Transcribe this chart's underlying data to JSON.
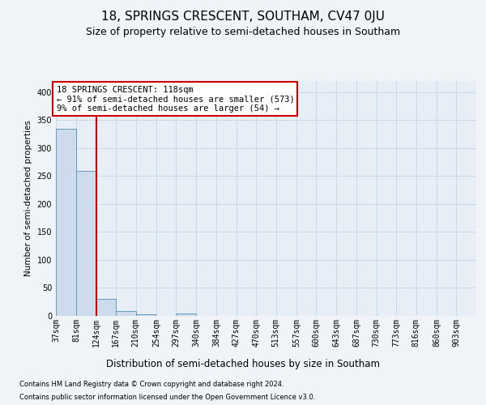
{
  "title": "18, SPRINGS CRESCENT, SOUTHAM, CV47 0JU",
  "subtitle": "Size of property relative to semi-detached houses in Southam",
  "xlabel": "Distribution of semi-detached houses by size in Southam",
  "ylabel": "Number of semi-detached properties",
  "footer1": "Contains HM Land Registry data © Crown copyright and database right 2024.",
  "footer2": "Contains public sector information licensed under the Open Government Licence v3.0.",
  "annotation_title": "18 SPRINGS CRESCENT: 118sqm",
  "annotation_line1": "← 91% of semi-detached houses are smaller (573)",
  "annotation_line2": "9% of semi-detached houses are larger (54) →",
  "property_size_line": 124,
  "bin_labels": [
    "37sqm",
    "81sqm",
    "124sqm",
    "167sqm",
    "210sqm",
    "254sqm",
    "297sqm",
    "340sqm",
    "384sqm",
    "427sqm",
    "470sqm",
    "513sqm",
    "557sqm",
    "600sqm",
    "643sqm",
    "687sqm",
    "730sqm",
    "773sqm",
    "816sqm",
    "860sqm",
    "903sqm"
  ],
  "bin_edges": [
    37,
    81,
    124,
    167,
    210,
    254,
    297,
    340,
    384,
    427,
    470,
    513,
    557,
    600,
    643,
    687,
    730,
    773,
    816,
    860,
    903
  ],
  "bin_width": 43,
  "bar_values": [
    335,
    259,
    30,
    8,
    3,
    0,
    4,
    0,
    0,
    0,
    0,
    0,
    0,
    0,
    0,
    0,
    0,
    0,
    0,
    0,
    0
  ],
  "bar_color": "#cddcec",
  "bar_edge_color": "#6699bb",
  "highlight_line_color": "#cc0000",
  "grid_color": "#c8d8e8",
  "background_color": "#f0f4f8",
  "plot_bg_color": "#e8eef5",
  "ylim": [
    0,
    420
  ],
  "yticks": [
    0,
    50,
    100,
    150,
    200,
    250,
    300,
    350,
    400
  ],
  "title_fontsize": 11,
  "subtitle_fontsize": 9,
  "ylabel_fontsize": 7.5,
  "xlabel_fontsize": 8.5,
  "footer_fontsize": 6,
  "tick_fontsize": 7,
  "ann_fontsize": 7.5
}
